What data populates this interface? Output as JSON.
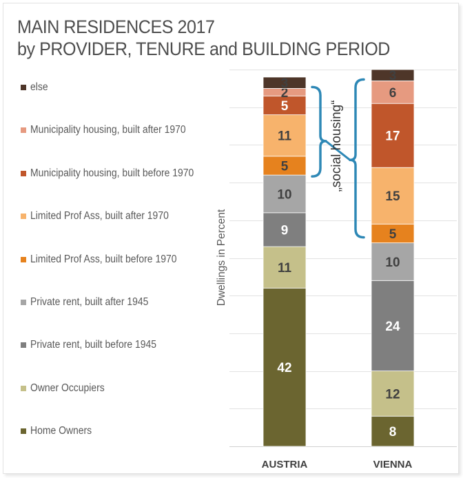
{
  "title": {
    "line1": "MAIN RESIDENCES 2017",
    "line2": "by PROVIDER, TENURE and BUILDING PERIOD"
  },
  "chart_data": {
    "type": "bar",
    "stacked": true,
    "title": "MAIN RESIDENCES 2017 by PROVIDER, TENURE and BUILDING PERIOD",
    "ylabel": "Dwellings in Percent",
    "categories": [
      "AUSTRIA",
      "VIENNA"
    ],
    "ylim": [
      0,
      100
    ],
    "grid": true,
    "legend_position": "left",
    "series": [
      {
        "name": "Home Owners",
        "color": "#6b6530",
        "values": [
          42,
          8
        ]
      },
      {
        "name": "Owner Occupiers",
        "color": "#c5c08a",
        "values": [
          11,
          12
        ]
      },
      {
        "name": "Private rent, built before 1945",
        "color": "#7f7f7f",
        "values": [
          9,
          24
        ]
      },
      {
        "name": "Private rent, built after 1945",
        "color": "#a6a6a6",
        "values": [
          10,
          10
        ]
      },
      {
        "name": "Limited Prof Ass, built before 1970",
        "color": "#e6821e",
        "values": [
          5,
          5
        ]
      },
      {
        "name": "Limited Prof Ass, built after 1970",
        "color": "#f7b36c",
        "values": [
          11,
          15
        ]
      },
      {
        "name": "Municipality housing, built before 1970",
        "color": "#c0562b",
        "values": [
          5,
          17
        ]
      },
      {
        "name": "Municipality housing, built after 1970",
        "color": "#e69a80",
        "values": [
          2,
          6
        ]
      },
      {
        "name": "else",
        "color": "#4e3629",
        "values": [
          3,
          3
        ]
      }
    ],
    "annotations": [
      {
        "text": "„social housing“",
        "color": "#2e88b6"
      }
    ]
  }
}
